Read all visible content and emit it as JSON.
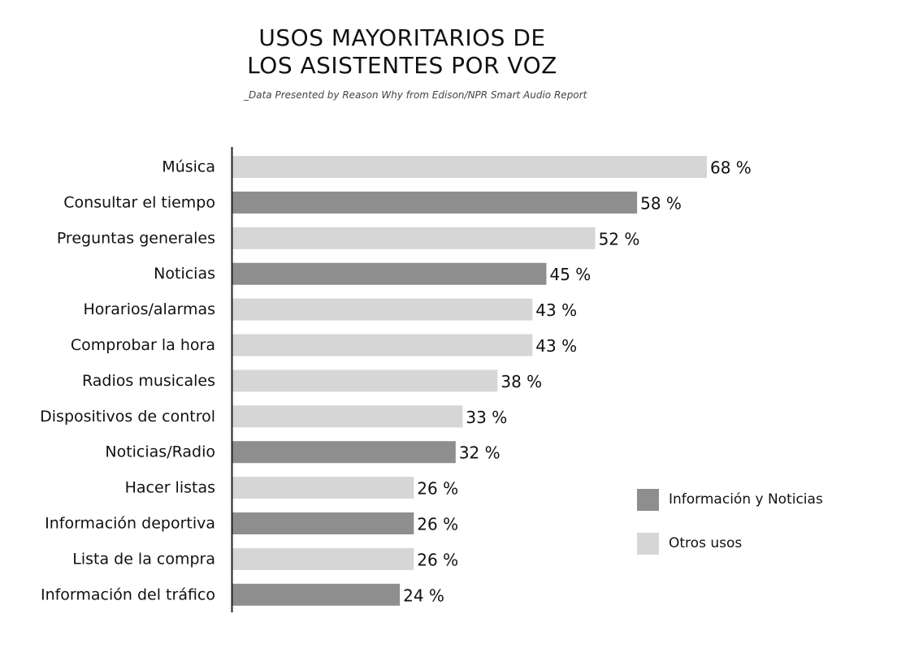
{
  "title_lines": [
    "USOS MAYORITARIOS DE",
    "LOS ASISTENTES POR VOZ"
  ],
  "subtitle": "_Data Presented by Reason Why from Edison/NPR Smart Audio Report",
  "colors": {
    "info": "#8e8e8e",
    "other": "#d6d6d6",
    "axis": "#222222"
  },
  "legend": [
    {
      "label": "Información y Noticias",
      "group": "info"
    },
    {
      "label": "Otros usos",
      "group": "other"
    }
  ],
  "chart_data": {
    "type": "bar",
    "orientation": "horizontal",
    "title": "USOS MAYORITARIOS DE LOS ASISTENTES POR VOZ",
    "xlim": [
      0,
      68
    ],
    "categories": [
      "Música",
      "Consultar el tiempo",
      "Preguntas generales",
      "Noticias",
      "Horarios/alarmas",
      "Comprobar la hora",
      "Radios musicales",
      "Dispositivos de control",
      "Noticias/Radio",
      "Hacer listas",
      "Información deportiva",
      "Lista de la compra",
      "Información del tráfico"
    ],
    "values": [
      68,
      58,
      52,
      45,
      43,
      43,
      38,
      33,
      32,
      26,
      26,
      26,
      24
    ],
    "value_labels": [
      "68 %",
      "58 %",
      "52 %",
      "45 %",
      "43 %",
      "43 %",
      "38 %",
      "33 %",
      "32 %",
      "26 %",
      "26 %",
      "26 %",
      "24 %"
    ],
    "groups": [
      "other",
      "info",
      "other",
      "info",
      "other",
      "other",
      "other",
      "other",
      "info",
      "other",
      "info",
      "other",
      "info"
    ],
    "legend_position": "right"
  }
}
